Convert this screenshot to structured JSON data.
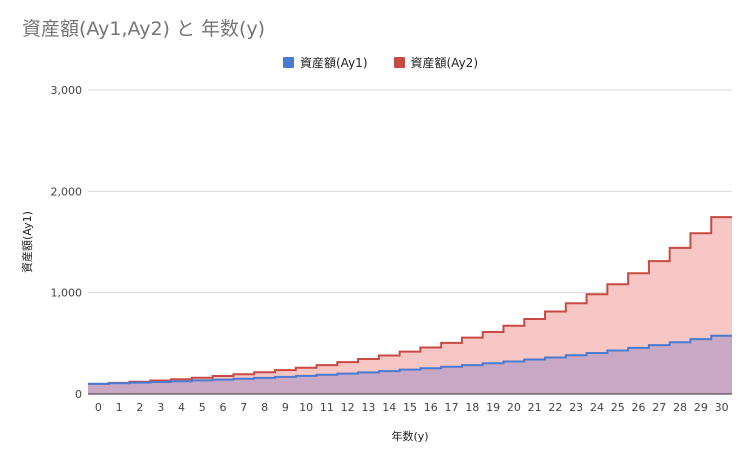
{
  "title": "資産額(Ay1,Ay2) と 年数(y)",
  "colors": {
    "ay1_line": "#4a7bd3",
    "ay1_fill": "#c9a8c5",
    "ay2_line": "#c84a44",
    "ay2_fill": "#f6c7c4",
    "grid": "#d9d9d9",
    "axis": "#333333"
  },
  "chart_data": {
    "type": "area",
    "step": true,
    "x": [
      0,
      1,
      2,
      3,
      4,
      5,
      6,
      7,
      8,
      9,
      10,
      11,
      12,
      13,
      14,
      15,
      16,
      17,
      18,
      19,
      20,
      21,
      22,
      23,
      24,
      25,
      26,
      27,
      28,
      29,
      30
    ],
    "series": [
      {
        "name": "資産額(Ay1)",
        "values": [
          100,
          106,
          112,
          119,
          126,
          134,
          142,
          150,
          159,
          169,
          179,
          190,
          201,
          213,
          226,
          240,
          254,
          269,
          285,
          303,
          321,
          340,
          360,
          382,
          405,
          429,
          455,
          482,
          511,
          542,
          575
        ]
      },
      {
        "name": "資産額(Ay2)",
        "values": [
          100,
          110,
          121,
          133,
          146,
          161,
          177,
          195,
          214,
          236,
          259,
          285,
          314,
          345,
          380,
          418,
          459,
          505,
          556,
          612,
          673,
          740,
          814,
          895,
          985,
          1083,
          1192,
          1311,
          1442,
          1586,
          1745
        ]
      }
    ],
    "xlabel": "年数(y)",
    "ylabel": "資産額(Ay1)",
    "ylim": [
      0,
      3000
    ],
    "yticks": [
      0,
      1000,
      2000,
      3000
    ],
    "ytick_labels": [
      "0",
      "1,000",
      "2,000",
      "3,000"
    ],
    "grid": true,
    "legend_position": "top"
  }
}
